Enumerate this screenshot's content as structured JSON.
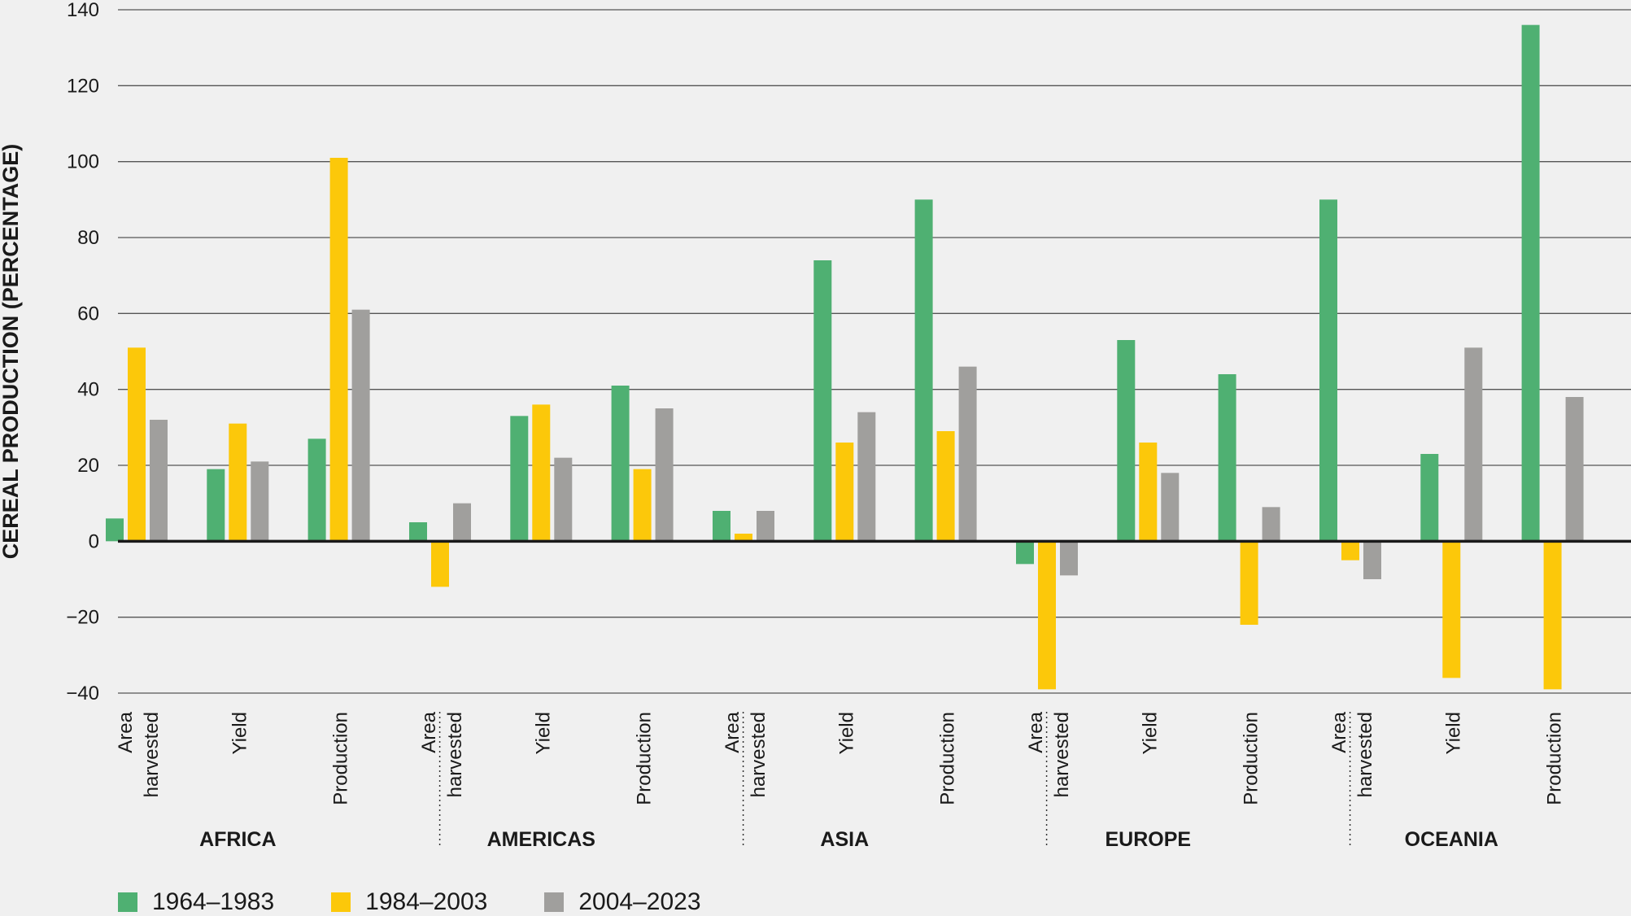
{
  "chart_data": {
    "type": "bar",
    "ylabel": "CEREAL PRODUCTION (PERCENTAGE)",
    "ylim": [
      -40,
      140
    ],
    "yticks": [
      -40,
      -20,
      0,
      20,
      40,
      60,
      80,
      100,
      120,
      140
    ],
    "ytick_labels": [
      "−40",
      "−20",
      "0",
      "20",
      "40",
      "60",
      "80",
      "100",
      "120",
      "140"
    ],
    "grid": true,
    "legend_position": "bottom-left",
    "groups": [
      {
        "name": "AFRICA",
        "categories": [
          {
            "label": [
              "Area",
              "harvested"
            ],
            "values": [
              6,
              51,
              32
            ]
          },
          {
            "label": [
              "Yield"
            ],
            "values": [
              19,
              31,
              21
            ]
          },
          {
            "label": [
              "Production"
            ],
            "values": [
              27,
              101,
              61
            ]
          }
        ]
      },
      {
        "name": "AMERICAS",
        "categories": [
          {
            "label": [
              "Area",
              "harvested"
            ],
            "values": [
              5,
              -12,
              10
            ]
          },
          {
            "label": [
              "Yield"
            ],
            "values": [
              33,
              36,
              22
            ]
          },
          {
            "label": [
              "Production"
            ],
            "values": [
              41,
              19,
              35
            ]
          }
        ]
      },
      {
        "name": "ASIA",
        "categories": [
          {
            "label": [
              "Area",
              "harvested"
            ],
            "values": [
              8,
              2,
              8
            ]
          },
          {
            "label": [
              "Yield"
            ],
            "values": [
              74,
              26,
              34
            ]
          },
          {
            "label": [
              "Production"
            ],
            "values": [
              90,
              29,
              46
            ]
          }
        ]
      },
      {
        "name": "EUROPE",
        "categories": [
          {
            "label": [
              "Area",
              "harvested"
            ],
            "values": [
              -6,
              -39,
              -9
            ]
          },
          {
            "label": [
              "Yield"
            ],
            "values": [
              53,
              26,
              18
            ]
          },
          {
            "label": [
              "Production"
            ],
            "values": [
              44,
              -22,
              9
            ]
          }
        ]
      },
      {
        "name": "OCEANIA",
        "categories": [
          {
            "label": [
              "Area",
              "harvested"
            ],
            "values": [
              90,
              -5,
              -10
            ]
          },
          {
            "label": [
              "Yield"
            ],
            "values": [
              23,
              -36,
              51
            ]
          },
          {
            "label": [
              "Production"
            ],
            "values": [
              136,
              -39,
              38
            ]
          }
        ]
      }
    ],
    "series": [
      {
        "name": "1964–1983",
        "color": "#4fb072"
      },
      {
        "name": "1984–2003",
        "color": "#fcc80a"
      },
      {
        "name": "2004–2023",
        "color": "#a09f9d"
      }
    ]
  }
}
